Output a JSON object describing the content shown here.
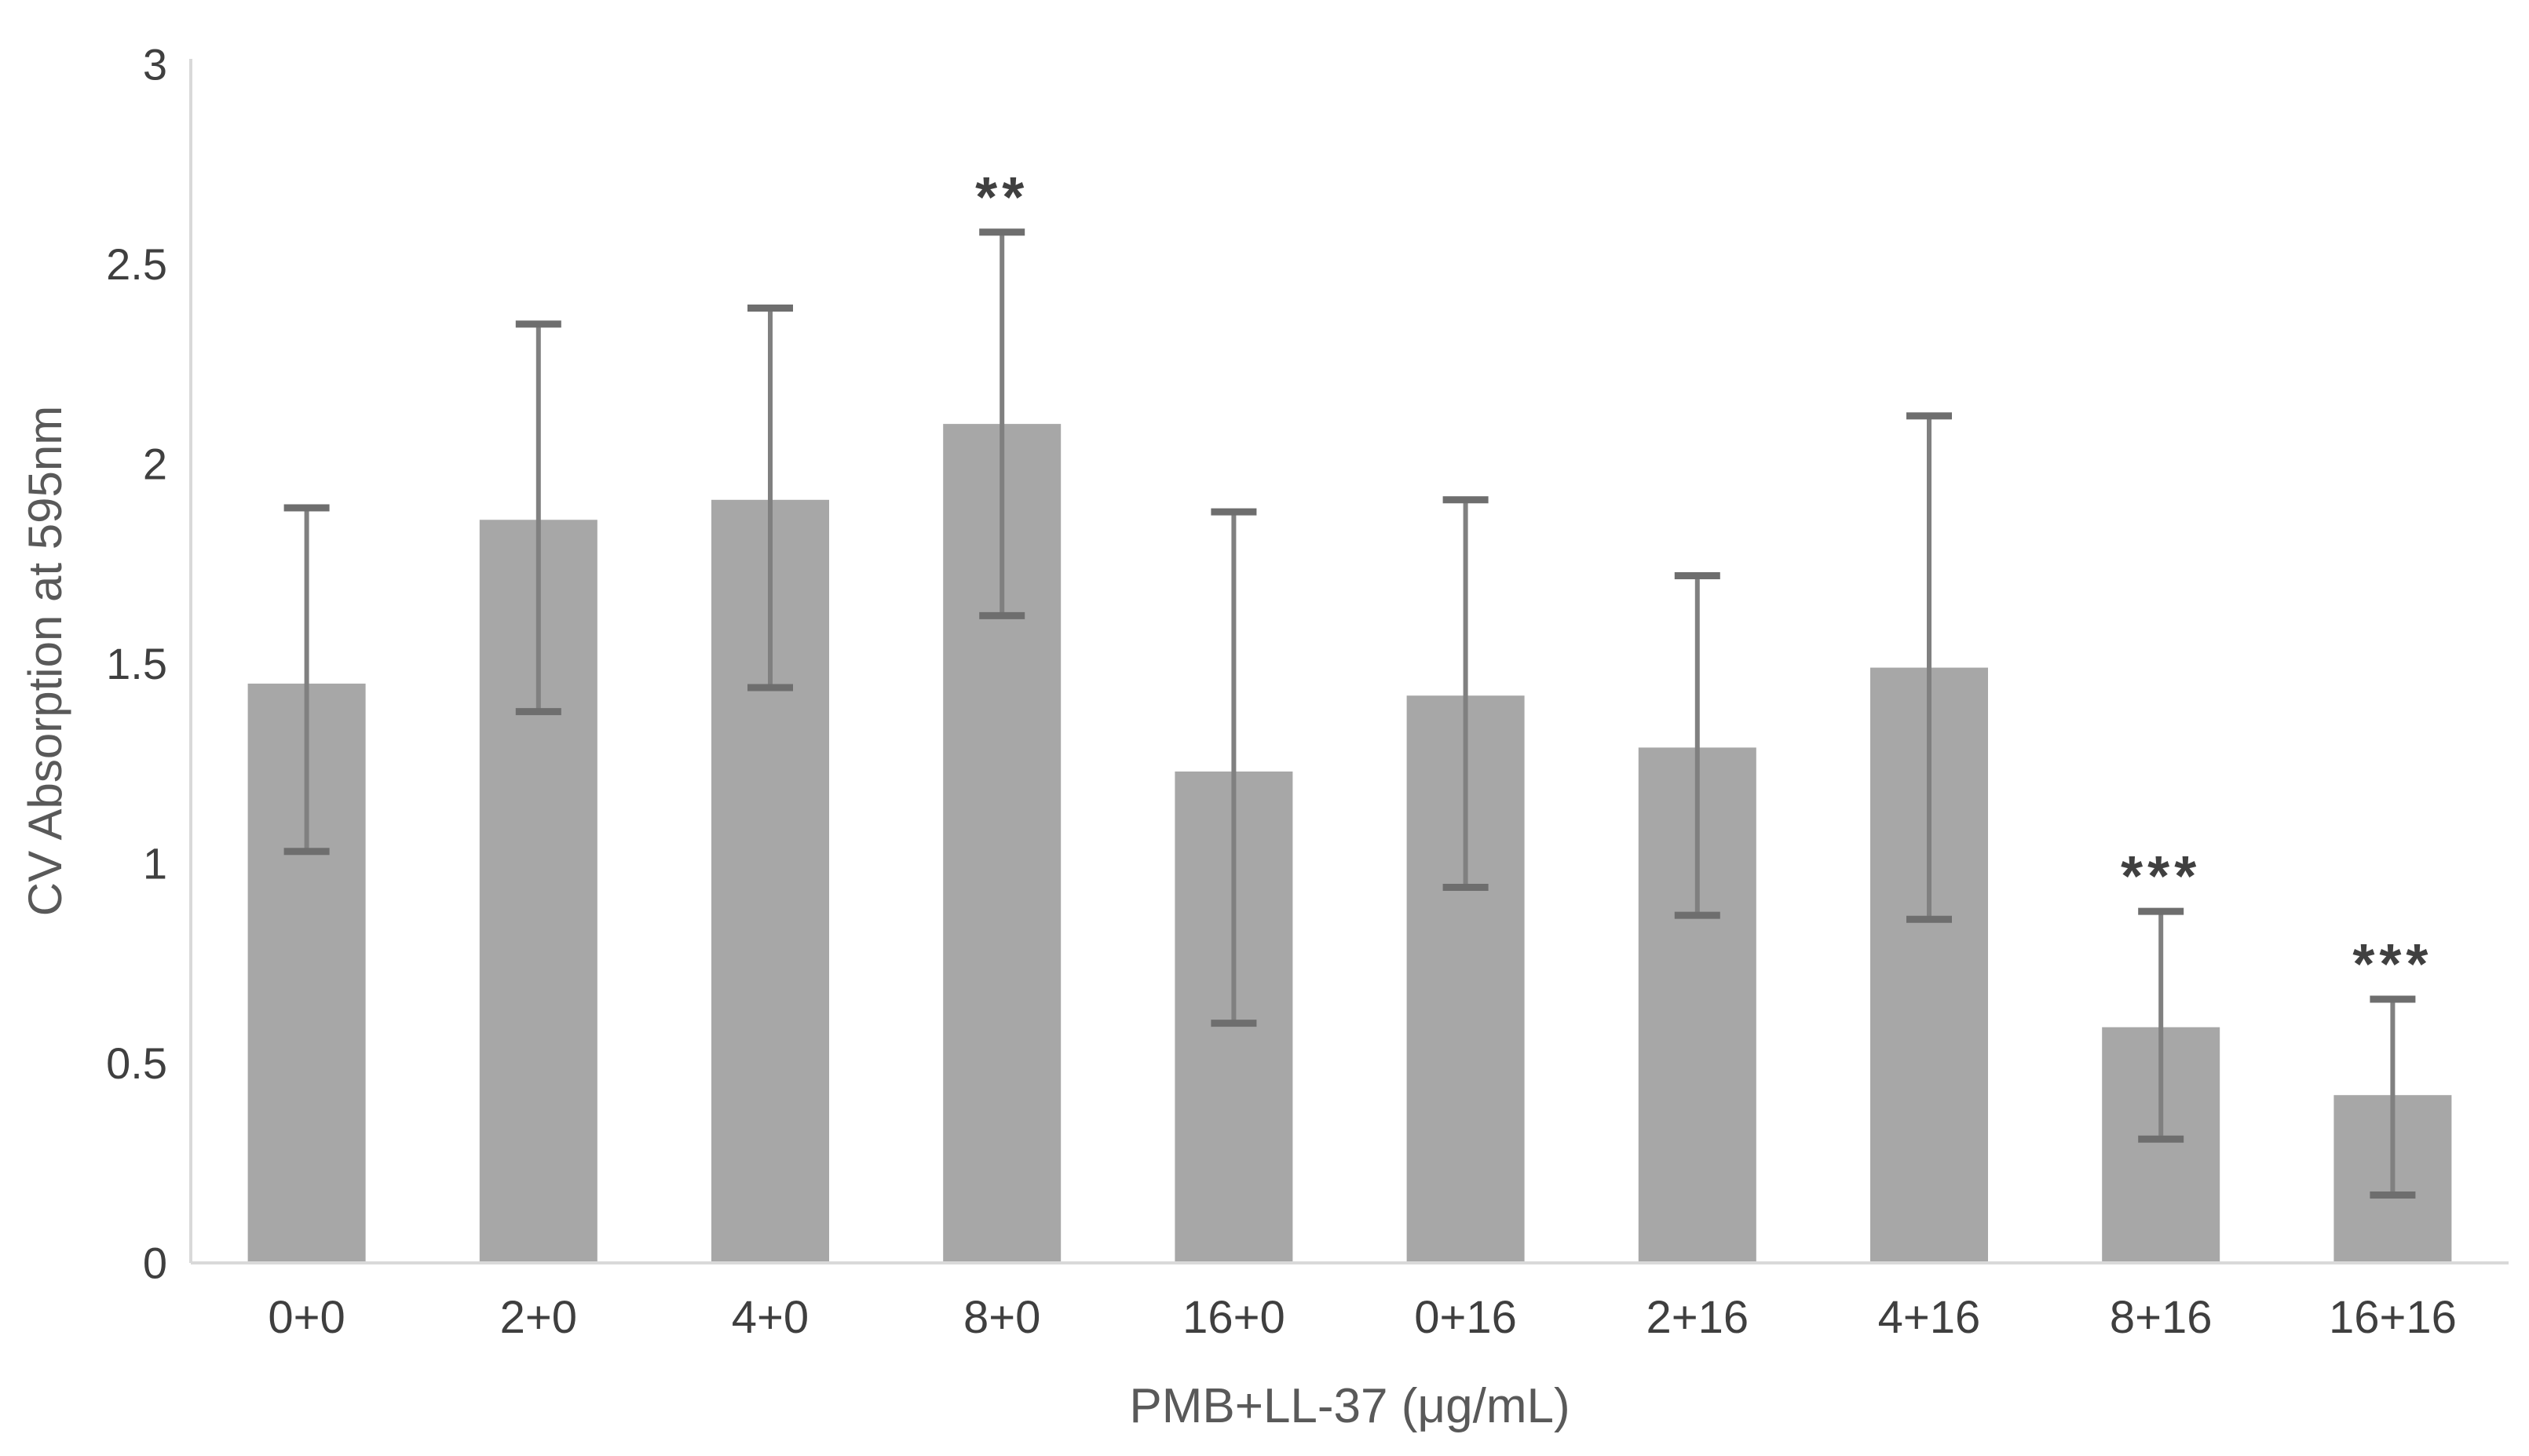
{
  "figure": {
    "background": "#ffffff"
  },
  "chart_data": {
    "type": "bar",
    "title": "",
    "xlabel": "PMB+LL-37 (μg/mL)",
    "ylabel": "CV Absorption at 595nm",
    "categories": [
      "0+0",
      "2+0",
      "4+0",
      "8+0",
      "16+0",
      "0+16",
      "2+16",
      "4+16",
      "8+16",
      "16+16"
    ],
    "values": [
      1.45,
      1.86,
      1.91,
      2.1,
      1.23,
      1.42,
      1.29,
      1.49,
      0.59,
      0.42
    ],
    "error_low": [
      1.03,
      1.38,
      1.44,
      1.62,
      0.6,
      0.94,
      0.87,
      0.86,
      0.31,
      0.17
    ],
    "error_high": [
      1.89,
      2.35,
      2.39,
      2.58,
      1.88,
      1.91,
      1.72,
      2.12,
      0.88,
      0.66
    ],
    "significance": [
      "",
      "",
      "",
      "**",
      "",
      "",
      "",
      "",
      "***",
      "***"
    ],
    "y_ticks": [
      0,
      0.5,
      1,
      1.5,
      2,
      2.5,
      3
    ],
    "y_tick_labels": [
      "0",
      "0.5",
      "1",
      "1.5",
      "2",
      "2.5",
      "3"
    ],
    "ylim": [
      0,
      3
    ],
    "grid": false,
    "legend": null,
    "bar_color": "#A7A7A7",
    "error_bar_color": "#808080",
    "error_cap_color": "#6E6E6E",
    "axis_line_color": "#D9D9D9",
    "tick_label_color": "#3F3F3F",
    "axis_title_color": "#595959",
    "sig_color": "#404040"
  }
}
